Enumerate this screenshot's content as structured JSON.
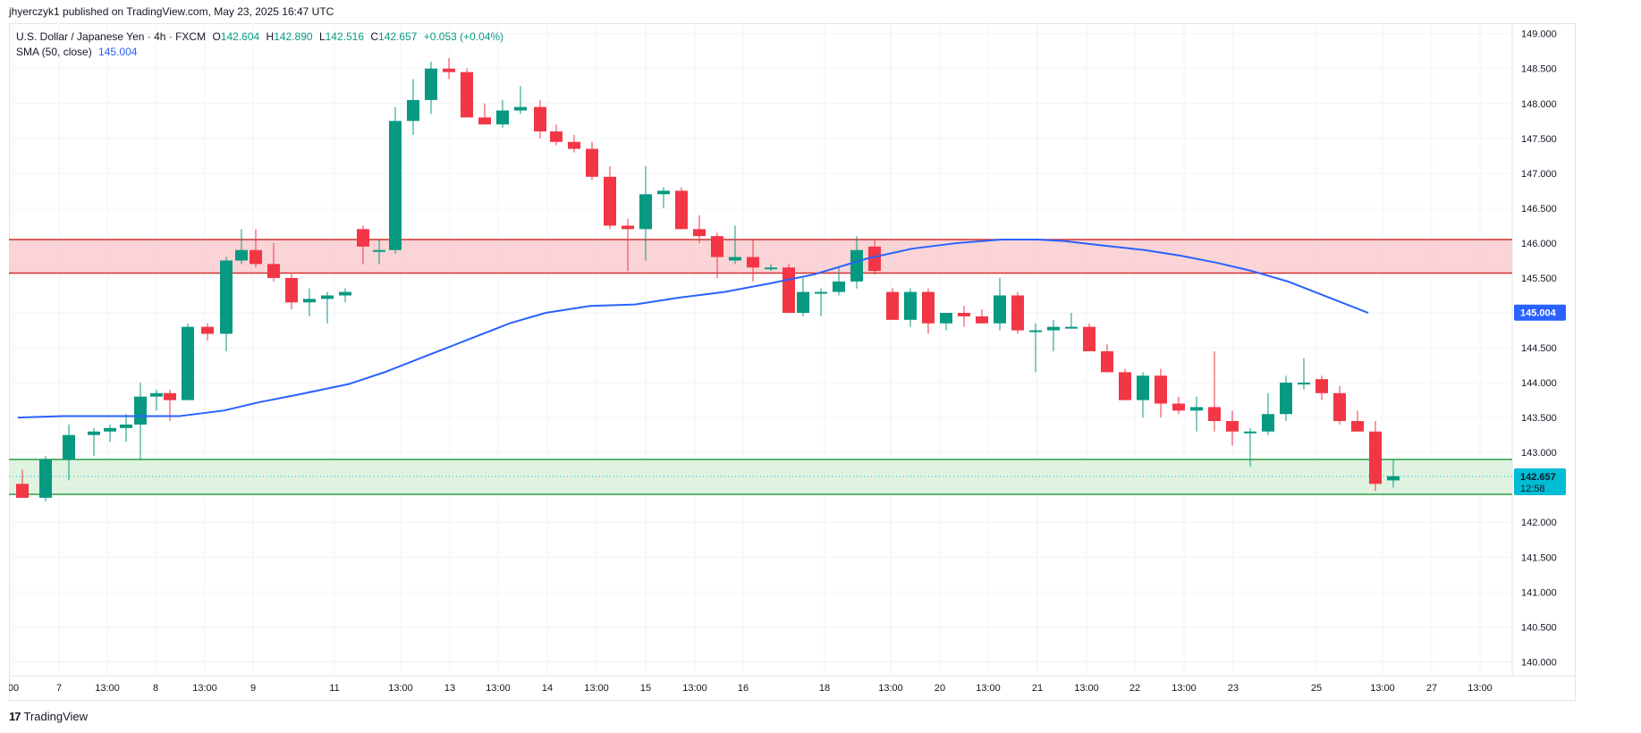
{
  "header": {
    "published": "jhyerczyk1 published on TradingView.com, May 23, 2025 16:47 UTC"
  },
  "legend": {
    "symbol": "U.S. Dollar / Japanese Yen · 4h · FXCM",
    "o_label": "O",
    "o_value": "142.604",
    "h_label": "H",
    "h_value": "142.890",
    "l_label": "L",
    "l_value": "142.516",
    "c_label": "C",
    "c_value": "142.657",
    "change": "+0.053 (+0.04%)",
    "sma_label": "SMA (50, close)",
    "sma_value": "145.004"
  },
  "price_tags": {
    "sma": "145.004",
    "last": "142.657",
    "countdown": "12:58"
  },
  "brand": {
    "name": "TradingView",
    "logo_glyph": "17"
  },
  "colors": {
    "up": "#089981",
    "down": "#f23645",
    "sma": "#2962ff",
    "resistance_fill": "#f9c9cc",
    "resistance_line": "#d32f2f",
    "support_fill": "#d7f0d8",
    "support_line": "#2e9e44",
    "last_tag": "#00bcd4"
  },
  "chart_data": {
    "type": "candlestick",
    "y_range": [
      139.8,
      149.15
    ],
    "y_ticks": [
      "149.000",
      "148.500",
      "148.000",
      "147.500",
      "147.000",
      "146.500",
      "146.000",
      "145.500",
      "145.000",
      "144.500",
      "144.000",
      "143.500",
      "143.000",
      "142.500",
      "142.000",
      "141.500",
      "141.000",
      "140.500",
      "140.000"
    ],
    "x_labels": [
      "00",
      "7",
      "13:00",
      "8",
      "13:00",
      "9",
      "11",
      "13:00",
      "13",
      "13:00",
      "14",
      "13:00",
      "15",
      "13:00",
      "16",
      "18",
      "13:00",
      "20",
      "13:00",
      "21",
      "13:00",
      "22",
      "13:00",
      "23",
      "25",
      "13:00",
      "27",
      "13:00"
    ],
    "zones": [
      {
        "kind": "resistance",
        "low": 145.57,
        "high": 146.05
      },
      {
        "kind": "support",
        "low": 142.4,
        "high": 142.9
      }
    ],
    "candles": [
      [
        142.55,
        142.75,
        142.35,
        142.35
      ],
      [
        142.35,
        142.95,
        142.3,
        142.9
      ],
      [
        142.9,
        143.4,
        142.6,
        143.25
      ],
      [
        143.25,
        143.35,
        142.95,
        143.3
      ],
      [
        143.3,
        143.4,
        143.15,
        143.35
      ],
      [
        143.35,
        143.55,
        143.15,
        143.4
      ],
      [
        143.4,
        144.0,
        142.9,
        143.8
      ],
      [
        143.8,
        143.9,
        143.6,
        143.85
      ],
      [
        143.85,
        143.9,
        143.45,
        143.75
      ],
      [
        143.75,
        144.85,
        143.75,
        144.8
      ],
      [
        144.8,
        144.85,
        144.6,
        144.7
      ],
      [
        144.7,
        145.8,
        144.45,
        145.75
      ],
      [
        145.75,
        146.2,
        145.7,
        145.9
      ],
      [
        145.9,
        146.2,
        145.65,
        145.7
      ],
      [
        145.7,
        146.0,
        145.45,
        145.5
      ],
      [
        145.5,
        145.55,
        145.05,
        145.15
      ],
      [
        145.15,
        145.35,
        144.95,
        145.2
      ],
      [
        145.2,
        145.3,
        144.85,
        145.25
      ],
      [
        145.25,
        145.35,
        145.15,
        145.3
      ],
      [
        146.2,
        146.25,
        145.7,
        145.95
      ],
      [
        145.9,
        146.05,
        145.7,
        145.9
      ],
      [
        145.9,
        147.95,
        145.85,
        147.75
      ],
      [
        147.75,
        148.35,
        147.55,
        148.05
      ],
      [
        148.05,
        148.6,
        147.85,
        148.5
      ],
      [
        148.5,
        148.65,
        148.35,
        148.45
      ],
      [
        148.45,
        148.5,
        147.8,
        147.8
      ],
      [
        147.8,
        148.0,
        147.7,
        147.7
      ],
      [
        147.7,
        148.05,
        147.65,
        147.9
      ],
      [
        147.9,
        148.25,
        147.85,
        147.95
      ],
      [
        147.95,
        148.05,
        147.5,
        147.6
      ],
      [
        147.6,
        147.7,
        147.4,
        147.45
      ],
      [
        147.45,
        147.55,
        147.3,
        147.35
      ],
      [
        147.35,
        147.45,
        146.9,
        146.95
      ],
      [
        146.95,
        147.1,
        146.2,
        146.25
      ],
      [
        146.25,
        146.35,
        145.6,
        146.2
      ],
      [
        146.2,
        147.1,
        145.75,
        146.7
      ],
      [
        146.7,
        146.8,
        146.5,
        146.75
      ],
      [
        146.75,
        146.8,
        146.2,
        146.2
      ],
      [
        146.2,
        146.4,
        146.0,
        146.1
      ],
      [
        146.1,
        146.15,
        145.5,
        145.8
      ],
      [
        145.75,
        146.25,
        145.7,
        145.8
      ],
      [
        145.8,
        146.05,
        145.45,
        145.65
      ],
      [
        145.65,
        145.7,
        145.6,
        145.65
      ],
      [
        145.65,
        145.7,
        145.0,
        145.0
      ],
      [
        145.0,
        145.5,
        144.95,
        145.3
      ],
      [
        145.3,
        145.35,
        144.95,
        145.3
      ],
      [
        145.3,
        145.65,
        145.25,
        145.45
      ],
      [
        145.45,
        146.1,
        145.35,
        145.9
      ],
      [
        145.95,
        146.05,
        145.55,
        145.6
      ],
      [
        145.3,
        145.35,
        144.9,
        144.9
      ],
      [
        144.9,
        145.35,
        144.8,
        145.3
      ],
      [
        145.3,
        145.35,
        144.7,
        144.85
      ],
      [
        144.85,
        145.0,
        144.75,
        145.0
      ],
      [
        145.0,
        145.1,
        144.8,
        144.95
      ],
      [
        144.95,
        145.05,
        144.85,
        144.85
      ],
      [
        144.85,
        145.5,
        144.75,
        145.25
      ],
      [
        145.25,
        145.3,
        144.7,
        144.75
      ],
      [
        144.75,
        144.85,
        144.15,
        144.75
      ],
      [
        144.75,
        144.9,
        144.45,
        144.8
      ],
      [
        144.8,
        145.0,
        144.8,
        144.8
      ],
      [
        144.8,
        144.85,
        144.45,
        144.45
      ],
      [
        144.45,
        144.55,
        144.15,
        144.15
      ],
      [
        144.15,
        144.2,
        143.75,
        143.75
      ],
      [
        143.75,
        144.15,
        143.5,
        144.1
      ],
      [
        144.1,
        144.2,
        143.5,
        143.7
      ],
      [
        143.7,
        143.8,
        143.55,
        143.6
      ],
      [
        143.6,
        143.8,
        143.3,
        143.65
      ],
      [
        143.65,
        144.45,
        143.3,
        143.45
      ],
      [
        143.45,
        143.6,
        143.1,
        143.3
      ],
      [
        143.3,
        143.35,
        142.8,
        143.3
      ],
      [
        143.3,
        143.85,
        143.25,
        143.55
      ],
      [
        143.55,
        144.1,
        143.45,
        144.0
      ],
      [
        144.0,
        144.35,
        143.9,
        144.0
      ],
      [
        144.05,
        144.1,
        143.75,
        143.85
      ],
      [
        143.85,
        143.95,
        143.4,
        143.45
      ],
      [
        143.45,
        143.6,
        143.3,
        143.3
      ],
      [
        143.3,
        143.45,
        142.45,
        142.55
      ],
      [
        142.6,
        142.9,
        142.5,
        142.66
      ]
    ],
    "candle_x": [
      15,
      41,
      67,
      95,
      113,
      131,
      147,
      165,
      180,
      200,
      222,
      243,
      260,
      276,
      296,
      316,
      336,
      356,
      376,
      396,
      414,
      432,
      452,
      472,
      492,
      512,
      532,
      552,
      572,
      594,
      612,
      632,
      652,
      672,
      692,
      712,
      732,
      752,
      772,
      792,
      812,
      832,
      852,
      872,
      888,
      908,
      928,
      948,
      968,
      988,
      1008,
      1028,
      1048,
      1068,
      1088,
      1108,
      1128,
      1148,
      1168,
      1188,
      1208,
      1228,
      1248,
      1268,
      1288,
      1308,
      1328,
      1348,
      1368,
      1388,
      1408,
      1428,
      1448,
      1468,
      1488,
      1508,
      1528,
      1548
    ],
    "sma": [
      [
        10,
        143.5
      ],
      [
        60,
        143.52
      ],
      [
        120,
        143.52
      ],
      [
        190,
        143.52
      ],
      [
        240,
        143.6
      ],
      [
        280,
        143.72
      ],
      [
        320,
        143.82
      ],
      [
        380,
        143.98
      ],
      [
        420,
        144.15
      ],
      [
        470,
        144.4
      ],
      [
        510,
        144.6
      ],
      [
        560,
        144.85
      ],
      [
        600,
        145.0
      ],
      [
        650,
        145.1
      ],
      [
        700,
        145.12
      ],
      [
        750,
        145.22
      ],
      [
        800,
        145.3
      ],
      [
        850,
        145.42
      ],
      [
        900,
        145.55
      ],
      [
        960,
        145.78
      ],
      [
        1010,
        145.92
      ],
      [
        1060,
        146.0
      ],
      [
        1110,
        146.05
      ],
      [
        1150,
        146.05
      ],
      [
        1180,
        146.03
      ],
      [
        1220,
        145.97
      ],
      [
        1270,
        145.9
      ],
      [
        1310,
        145.82
      ],
      [
        1350,
        145.72
      ],
      [
        1390,
        145.6
      ],
      [
        1430,
        145.45
      ],
      [
        1470,
        145.25
      ],
      [
        1520,
        145.0
      ]
    ]
  }
}
